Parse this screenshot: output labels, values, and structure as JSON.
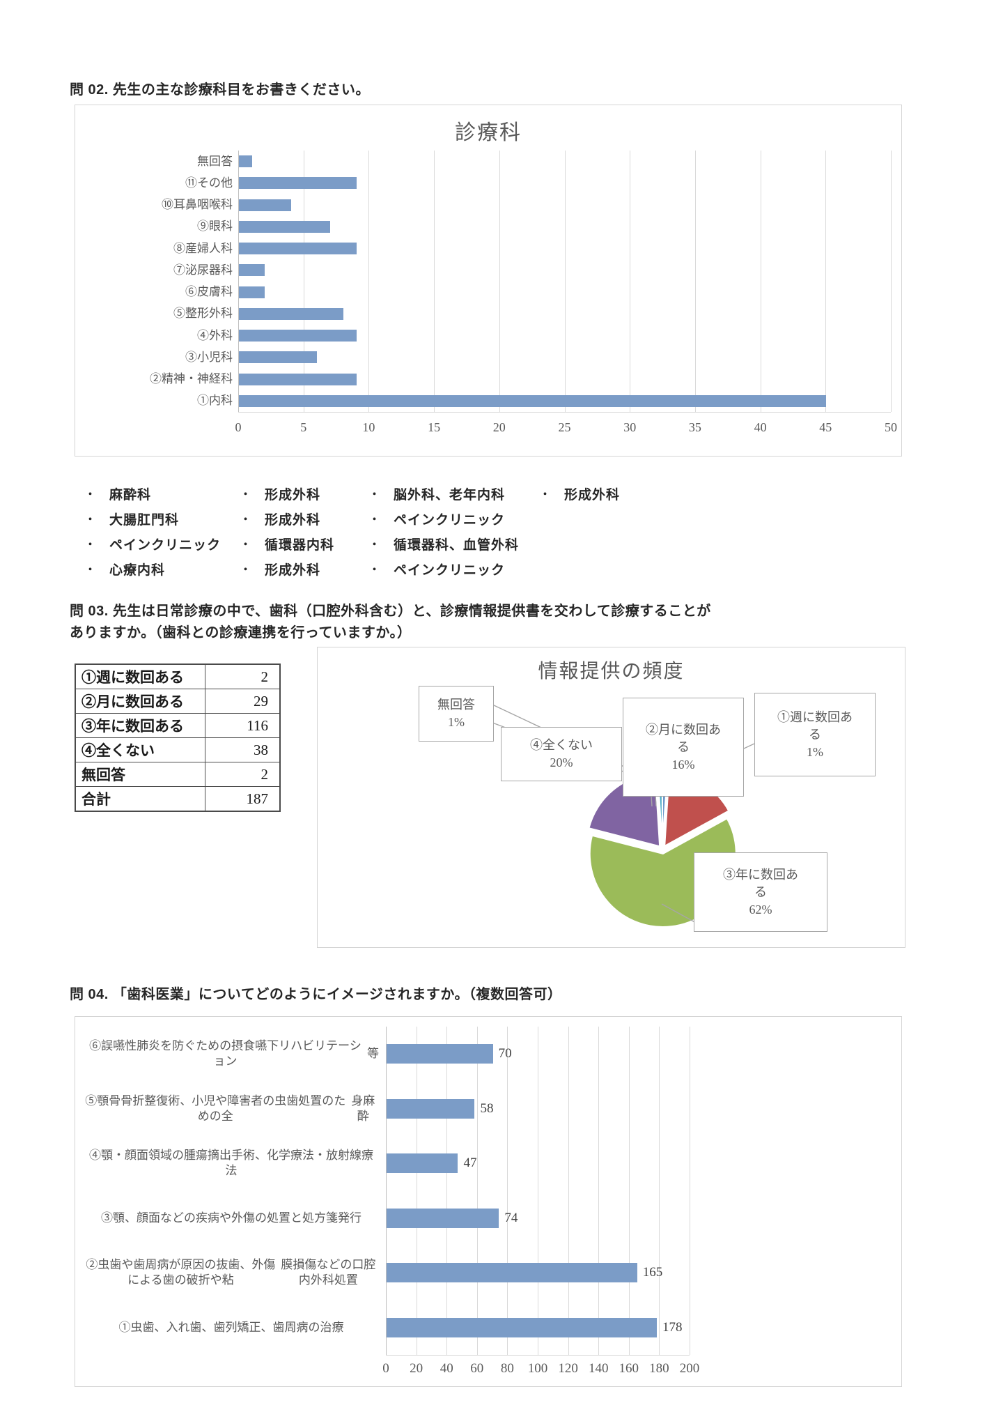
{
  "headings": {
    "q02": "問 02.  先生の主な診療科目をお書きください。",
    "q03_line1": "問 03.  先生は日常診療の中で、歯科（口腔外科含む）と、診療情報提供書を交わして診療することが",
    "q03_line2": "ありますか。（歯科との診療連携を行っていますか。）",
    "q04": "問 04.  「歯科医業」についてどのようにイメージされますか。（複数回答可）"
  },
  "specialty_notes": {
    "bullet": "・",
    "rows": [
      [
        "麻酔科",
        "形成外科",
        "脳外科、老年内科",
        "形成外科"
      ],
      [
        "大腸肛門科",
        "形成外科",
        "ペインクリニック"
      ],
      [
        "ペインクリニック",
        "循環器内科",
        "循環器科、血管外科"
      ],
      [
        "心療内科",
        "形成外科",
        "ペインクリニック"
      ]
    ]
  },
  "frequency_table": {
    "rows": [
      {
        "label": "①週に数回ある",
        "value": "2"
      },
      {
        "label": "②月に数回ある",
        "value": "29"
      },
      {
        "label": "③年に数回ある",
        "value": "116"
      },
      {
        "label": "④全くない",
        "value": "38"
      },
      {
        "label": "無回答",
        "value": "2"
      },
      {
        "label": "合計",
        "value": "187"
      }
    ]
  },
  "chart_data": [
    {
      "id": "shinryoka",
      "type": "bar",
      "orientation": "horizontal",
      "title": "診療科",
      "categories": [
        "無回答",
        "⑪その他",
        "⑩耳鼻咽喉科",
        "⑨眼科",
        "⑧産婦人科",
        "⑦泌尿器科",
        "⑥皮膚科",
        "⑤整形外科",
        "④外科",
        "③小児科",
        "②精神・神経科",
        "①内科"
      ],
      "values": [
        1,
        9,
        4,
        7,
        9,
        2,
        2,
        8,
        9,
        6,
        9,
        45
      ],
      "xlim": [
        0,
        50
      ],
      "tick_step": 5,
      "grid": true,
      "legend": "none",
      "bar_color": "#7b9cc7"
    },
    {
      "id": "joho-teikyo-hindo",
      "type": "pie",
      "title": "情報提供の頻度",
      "slices": [
        {
          "label": "①週に数回ある",
          "pct": 1,
          "color": "#4f81bd"
        },
        {
          "label": "②月に数回ある",
          "pct": 16,
          "color": "#c0504d"
        },
        {
          "label": "③年に数回ある",
          "pct": 62,
          "color": "#9bbb59"
        },
        {
          "label": "④全くない",
          "pct": 20,
          "color": "#8064a2"
        },
        {
          "label": "無回答",
          "pct": 1,
          "color": "#4bacc6"
        }
      ],
      "callouts": [
        {
          "lines": [
            "無回答",
            "1%"
          ]
        },
        {
          "lines": [
            "④全くない",
            "20%"
          ]
        },
        {
          "lines": [
            "②月に数回あ",
            "る",
            "16%"
          ]
        },
        {
          "lines": [
            "①週に数回あ",
            "る",
            "1%"
          ]
        },
        {
          "lines": [
            "③年に数回あ",
            "る",
            "62%"
          ]
        }
      ],
      "legend": "none"
    },
    {
      "id": "shika-igyo-image",
      "type": "bar",
      "orientation": "horizontal",
      "categories": [
        "⑥誤嚥性肺炎を防ぐための摂食嚥下リハビリテーション等",
        "⑤顎骨骨折整復術、小児や障害者の虫歯処置のための全身麻酔",
        "④顎・顔面領域の腫瘍摘出手術、化学療法・放射線療法",
        "③顎、顔面などの疾病や外傷の処置と処方箋発行",
        "②虫歯や歯周病が原因の抜歯、外傷による歯の破折や粘膜損傷などの口腔内外科処置",
        "①虫歯、入れ歯、歯列矯正、歯周病の治療"
      ],
      "label_lines": [
        [
          "⑥誤嚥性肺炎を防ぐための摂食嚥下リハビリテーション",
          "等"
        ],
        [
          "⑤顎骨骨折整復術、小児や障害者の虫歯処置のための全",
          "身麻酔"
        ],
        [
          "④顎・顔面領域の腫瘍摘出手術、化学療法・放射線療法"
        ],
        [
          "③顎、顔面などの疾病や外傷の処置と処方箋発行"
        ],
        [
          "②虫歯や歯周病が原因の抜歯、外傷による歯の破折や粘",
          "膜損傷などの口腔内外科処置"
        ],
        [
          "①虫歯、入れ歯、歯列矯正、歯周病の治療"
        ]
      ],
      "values": [
        70,
        58,
        47,
        74,
        165,
        178
      ],
      "data_labels": [
        70,
        58,
        47,
        74,
        165,
        178
      ],
      "xlim": [
        0,
        200
      ],
      "tick_step": 20,
      "grid": true,
      "legend": "none",
      "bar_color": "#7b9cc7"
    }
  ]
}
